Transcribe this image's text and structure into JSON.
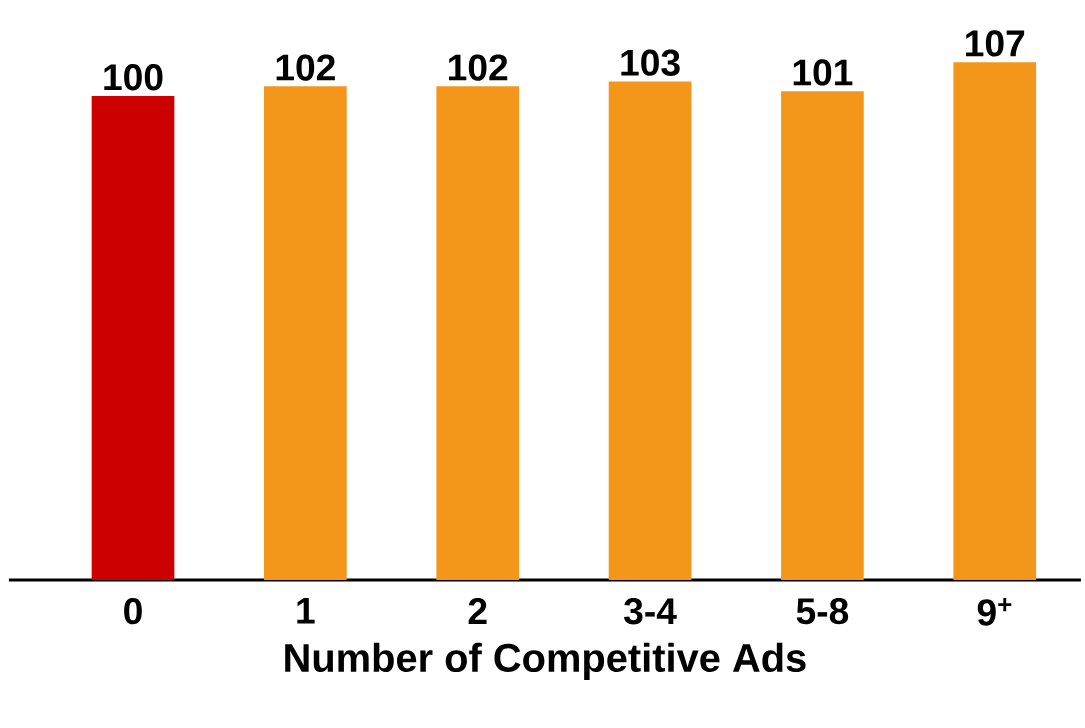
{
  "chart_data": {
    "type": "bar",
    "xlabel": "Number of Competitive Ads",
    "categories": [
      "0",
      "1",
      "2",
      "3-4",
      "5-8",
      "9$^{+}$"
    ],
    "values": [
      100,
      102,
      102,
      103,
      101,
      107
    ],
    "colors": [
      "#cc0000",
      "#f39619",
      "#f39619",
      "#f39619",
      "#f39619",
      "#f39619"
    ],
    "data_labels": true
  }
}
